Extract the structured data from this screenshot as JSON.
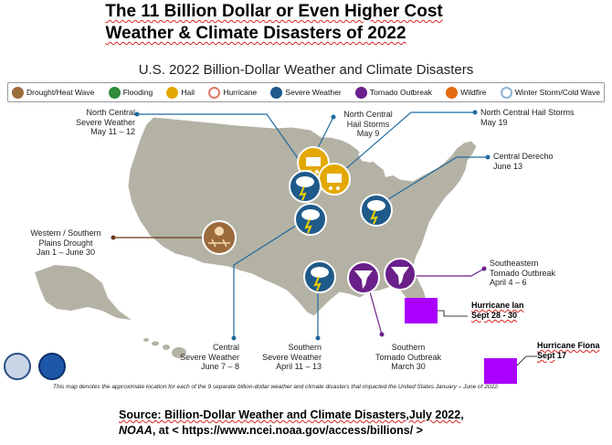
{
  "title_line1": "The 11 Billion Dollar or Even Higher Cost",
  "title_line2": "Weather & Climate Disasters of 2022",
  "map_title": "U.S. 2022 Billion-Dollar Weather and Climate Disasters",
  "legend": [
    {
      "label": "Drought/Heat Wave",
      "icon": "drought-icon",
      "color": "#9c6b3c"
    },
    {
      "label": "Flooding",
      "icon": "flooding-icon",
      "color": "#2f8a3a"
    },
    {
      "label": "Hail",
      "icon": "hail-icon",
      "color": "#e3a800"
    },
    {
      "label": "Hurricane",
      "icon": "hurricane-icon",
      "color": "#e07a6a"
    },
    {
      "label": "Severe Weather",
      "icon": "severe-weather-icon",
      "color": "#1e5a8a"
    },
    {
      "label": "Tornado Outbreak",
      "icon": "tornado-icon",
      "color": "#6a1f8a"
    },
    {
      "label": "Wildfire",
      "icon": "wildfire-icon",
      "color": "#e56a10"
    },
    {
      "label": "Winter Storm/Cold Wave",
      "icon": "winter-storm-icon",
      "color": "#8fb4d8"
    }
  ],
  "events": {
    "nc_severe": {
      "line1": "North Central",
      "line2": "Severe Weather",
      "line3": "May 11 – 12"
    },
    "nc_hail_may9": {
      "line1": "North Central",
      "line2": "Hail Storms",
      "line3": "May 9"
    },
    "nc_hail_may19": {
      "line1": "North Central Hail Storms",
      "line2": "May 19"
    },
    "central_derecho": {
      "line1": "Central Derecho",
      "line2": "June 13"
    },
    "ws_drought": {
      "line1": "Western / Southern",
      "line2": "Plains Drought",
      "line3": "Jan 1 – June 30"
    },
    "se_tornado": {
      "line1": "Southeastern",
      "line2": "Tornado Outbreak",
      "line3": "April 4 – 6"
    },
    "central_severe": {
      "line1": "Central",
      "line2": "Severe Weather",
      "line3": "June 7 – 8"
    },
    "south_severe": {
      "line1": "Southern",
      "line2": "Severe Weather",
      "line3": "April 11 – 13"
    },
    "south_tornado": {
      "line1": "Southern",
      "line2": "Tornado Outbreak",
      "line3": "March 30"
    }
  },
  "hurricane_ian": {
    "name": "Hurricane Ian",
    "dates": "Sept 28 - 30",
    "color": "#aa00ff"
  },
  "hurricane_fiona": {
    "name": "Hurricane Fiona",
    "month": "Sept",
    "day": "17",
    "color": "#aa00ff"
  },
  "note": "This map denotes the approximate location for each of the 9 separate billion-dollar weather and climate disasters that impacted the United States January – June of 2022.",
  "source_line1": "Source: Billion-Dollar Weather and Climate Disasters,July 2022,",
  "source_noaa": "NOAA",
  "source_line2": ", at < https://www.ncei.noaa.gov/access/billions/ >",
  "colors": {
    "land": "#b4b2a4",
    "water": "#ffffff",
    "leader": "#1e6aa0",
    "leader_purple": "#6a1f8a",
    "leader_brown": "#6b3a1f"
  }
}
